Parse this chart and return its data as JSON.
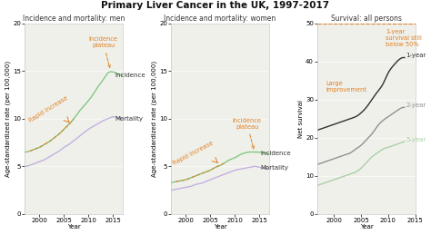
{
  "title": "Primary Liver Cancer in the UK, 1997-2017",
  "title_fontsize": 7.5,
  "years": [
    1997,
    1998,
    1999,
    2000,
    2001,
    2002,
    2003,
    2004,
    2005,
    2006,
    2007,
    2008,
    2009,
    2010,
    2011,
    2012,
    2013,
    2014,
    2015,
    2016,
    2017
  ],
  "men_incidence": [
    6.5,
    6.6,
    6.8,
    7.0,
    7.3,
    7.6,
    8.0,
    8.4,
    8.9,
    9.4,
    10.0,
    10.7,
    11.3,
    11.9,
    12.6,
    13.4,
    14.1,
    14.8,
    14.9,
    14.7,
    14.5
  ],
  "men_mortality": [
    5.0,
    5.1,
    5.3,
    5.5,
    5.7,
    6.0,
    6.3,
    6.6,
    7.0,
    7.3,
    7.7,
    8.1,
    8.5,
    8.9,
    9.2,
    9.5,
    9.8,
    10.0,
    10.2,
    10.1,
    10.0
  ],
  "women_incidence": [
    3.3,
    3.4,
    3.5,
    3.6,
    3.8,
    4.0,
    4.2,
    4.4,
    4.6,
    4.9,
    5.1,
    5.4,
    5.7,
    5.9,
    6.2,
    6.4,
    6.5,
    6.5,
    6.5,
    6.4,
    6.3
  ],
  "women_mortality": [
    2.5,
    2.6,
    2.7,
    2.8,
    2.9,
    3.1,
    3.2,
    3.4,
    3.6,
    3.8,
    4.0,
    4.2,
    4.4,
    4.6,
    4.7,
    4.8,
    4.9,
    5.0,
    4.9,
    4.8,
    4.8
  ],
  "surv_years": [
    1997,
    1998,
    1999,
    2000,
    2001,
    2002,
    2003,
    2004,
    2005,
    2006,
    2007,
    2008,
    2009,
    2010,
    2011,
    2012,
    2013
  ],
  "surv_1yr": [
    22,
    22.5,
    23,
    23.5,
    24,
    24.5,
    25,
    25.5,
    26.5,
    28,
    30,
    32,
    34,
    37,
    39,
    40.5,
    41
  ],
  "surv_2yr": [
    13,
    13.5,
    14,
    14.5,
    15,
    15.5,
    16,
    17,
    18,
    19.5,
    21,
    23,
    24.5,
    25.5,
    26.5,
    27.5,
    28
  ],
  "surv_5yr": [
    7.5,
    8.0,
    8.5,
    9.0,
    9.5,
    10.0,
    10.5,
    11.0,
    12.0,
    13.5,
    15.0,
    16.0,
    17.0,
    17.5,
    18.0,
    18.5,
    19.0
  ],
  "color_incidence": "#82c882",
  "color_mortality": "#c4b0e0",
  "color_annotation": "#e08020",
  "color_surv_1yr": "#303030",
  "color_surv_2yr": "#909090",
  "color_surv_5yr": "#a8d0a8",
  "color_50pct_line": "#e08020",
  "color_bg": "#f0f0eb",
  "panel1_title": "Incidence and mortality: men",
  "panel2_title": "Incidence and mortality: women",
  "panel3_title": "Survival: all persons",
  "ylabel12": "Age-standardized rate (per 100,000)",
  "ylabel3": "Net survival",
  "xlabel": "Year",
  "ylim12": [
    0,
    20
  ],
  "ylim3": [
    0,
    50
  ],
  "yticks12": [
    0,
    5,
    10,
    15,
    20
  ],
  "yticks3": [
    0,
    10,
    20,
    30,
    40,
    50
  ],
  "xticks": [
    2000,
    2005,
    2010,
    2015
  ]
}
